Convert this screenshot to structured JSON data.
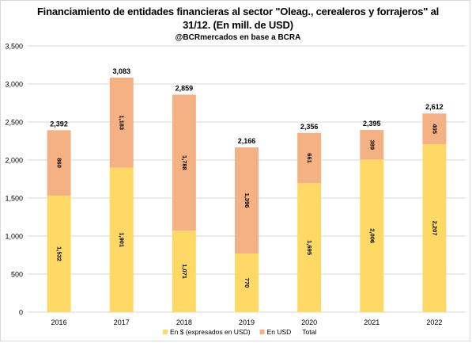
{
  "chart": {
    "title_line1": "Financiamiento de entidades financieras al sector \"Oleag., cerealeros y forrajeros\" al",
    "title_line2": "31/12. (En mill. de USD)",
    "subtitle": "@BCRmercados en base a BCRA"
  },
  "chart_data": {
    "type": "bar",
    "stacked": true,
    "title": "Financiamiento de entidades financieras al sector \"Oleag., cerealeros y forrajeros\" al 31/12. (En mill. de USD)",
    "subtitle": "@BCRmercados en base a BCRA",
    "xlabel": "",
    "ylabel": "",
    "categories": [
      "2016",
      "2017",
      "2018",
      "2019",
      "2020",
      "2021",
      "2022"
    ],
    "series": [
      {
        "name": "En $ (expresados en USD)",
        "color": "#ffd966",
        "values": [
          1532,
          1901,
          1071,
          770,
          1695,
          2006,
          2207
        ],
        "labels": [
          "1,532",
          "1,901",
          "1,071",
          "770",
          "1,695",
          "2,006",
          "2,207"
        ]
      },
      {
        "name": "En USD",
        "color": "#f4b183",
        "values": [
          860,
          1183,
          1788,
          1396,
          661,
          389,
          405
        ],
        "labels": [
          "860",
          "1,183",
          "1,788",
          "1,396",
          "661",
          "389",
          "405"
        ]
      }
    ],
    "totals": {
      "name": "Total",
      "values": [
        2392,
        3083,
        2859,
        2166,
        2356,
        2395,
        2612
      ],
      "labels": [
        "2,392",
        "3,083",
        "2,859",
        "2,166",
        "2,356",
        "2,395",
        "2,612"
      ]
    },
    "ylim": [
      0,
      3500
    ],
    "yticks": [
      0,
      500,
      1000,
      1500,
      2000,
      2500,
      3000,
      3500
    ],
    "ytick_labels": [
      "0",
      "500",
      "1,000",
      "1,500",
      "2,000",
      "2,500",
      "3,000",
      "3,500"
    ],
    "grid": true,
    "legend_position": "bottom",
    "gridline_color": "#d9d9d9"
  }
}
